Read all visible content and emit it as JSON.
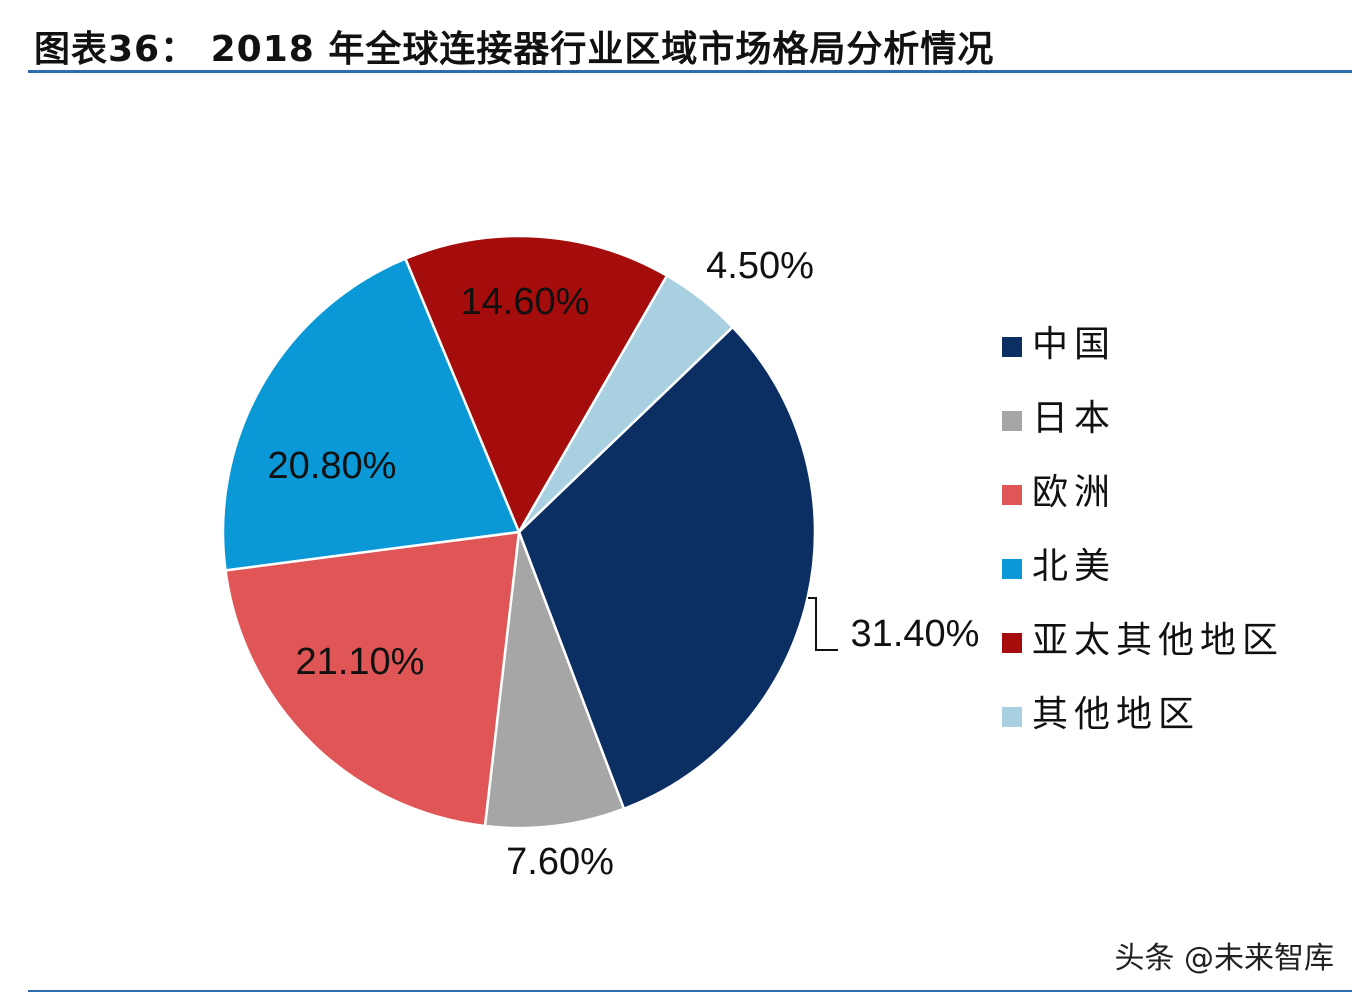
{
  "title": "图表36：  2018 年全球连接器行业区域市场格局分析情况",
  "watermark": "头条 @未来智库",
  "chart_data": {
    "type": "pie",
    "title": "图表36：  2018 年全球连接器行业区域市场格局分析情况",
    "legend_position": "right",
    "slices": [
      {
        "label": "中国",
        "value": 31.4,
        "value_label": "31.40%",
        "color": "#0b2e63"
      },
      {
        "label": "日本",
        "value": 7.6,
        "value_label": "7.60%",
        "color": "#a6a6a6"
      },
      {
        "label": "欧洲",
        "value": 21.1,
        "value_label": "21.10%",
        "color": "#e05555"
      },
      {
        "label": "北美",
        "value": 20.8,
        "value_label": "20.80%",
        "color": "#0a98d6"
      },
      {
        "label": "亚太其他地区",
        "value": 14.6,
        "value_label": "14.60%",
        "color": "#a50c0c"
      },
      {
        "label": "其他地区",
        "value": 4.5,
        "value_label": "4.50%",
        "color": "#a8d0e0"
      }
    ]
  }
}
